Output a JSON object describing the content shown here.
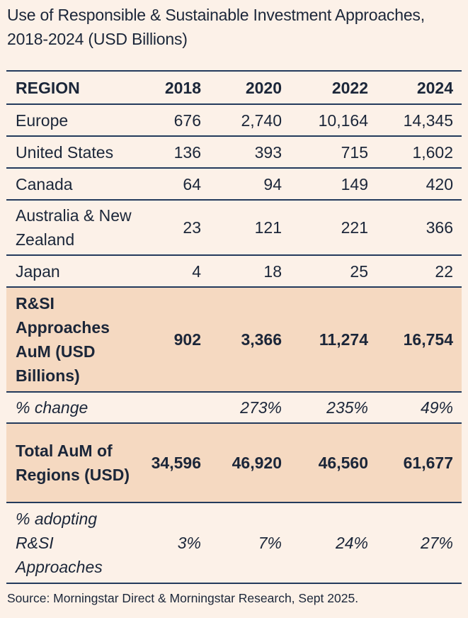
{
  "title": "Use of Responsible & Sustainable Investment Approaches, 2018-2024 (USD Billions)",
  "table": {
    "headers": [
      "REGION",
      "2018",
      "2020",
      "2022",
      "2024"
    ],
    "regions": [
      {
        "label": "Europe",
        "values": [
          "676",
          "2,740",
          "10,164",
          "14,345"
        ]
      },
      {
        "label": "United States",
        "values": [
          "136",
          "393",
          "715",
          "1,602"
        ]
      },
      {
        "label": "Canada",
        "values": [
          "64",
          "94",
          "149",
          "420"
        ]
      },
      {
        "label": "Australia & New Zealand",
        "values": [
          "23",
          "121",
          "221",
          "366"
        ]
      },
      {
        "label": "Japan",
        "values": [
          "4",
          "18",
          "25",
          "22"
        ]
      }
    ],
    "rsi_total": {
      "label": "R&SI Approaches AuM (USD Billions)",
      "values": [
        "902",
        "3,366",
        "11,274",
        "16,754"
      ]
    },
    "pct_change": {
      "label": "% change",
      "values": [
        "",
        "273%",
        "235%",
        "49%"
      ]
    },
    "total_aum": {
      "label": "Total AuM of Regions (USD)",
      "values": [
        "34,596",
        "46,920",
        "46,560",
        "61,677"
      ]
    },
    "pct_adopting": {
      "label": "% adopting R&SI Approaches",
      "values": [
        "3%",
        "7%",
        "24%",
        "27%"
      ]
    }
  },
  "source": "Source: Morningstar Direct & Morningstar Research, Sept 2025.",
  "colors": {
    "background": "#fcf1e8",
    "highlight_row": "#f5d9c1",
    "rule_lines": "#233a5c",
    "text": "#1b2639"
  }
}
